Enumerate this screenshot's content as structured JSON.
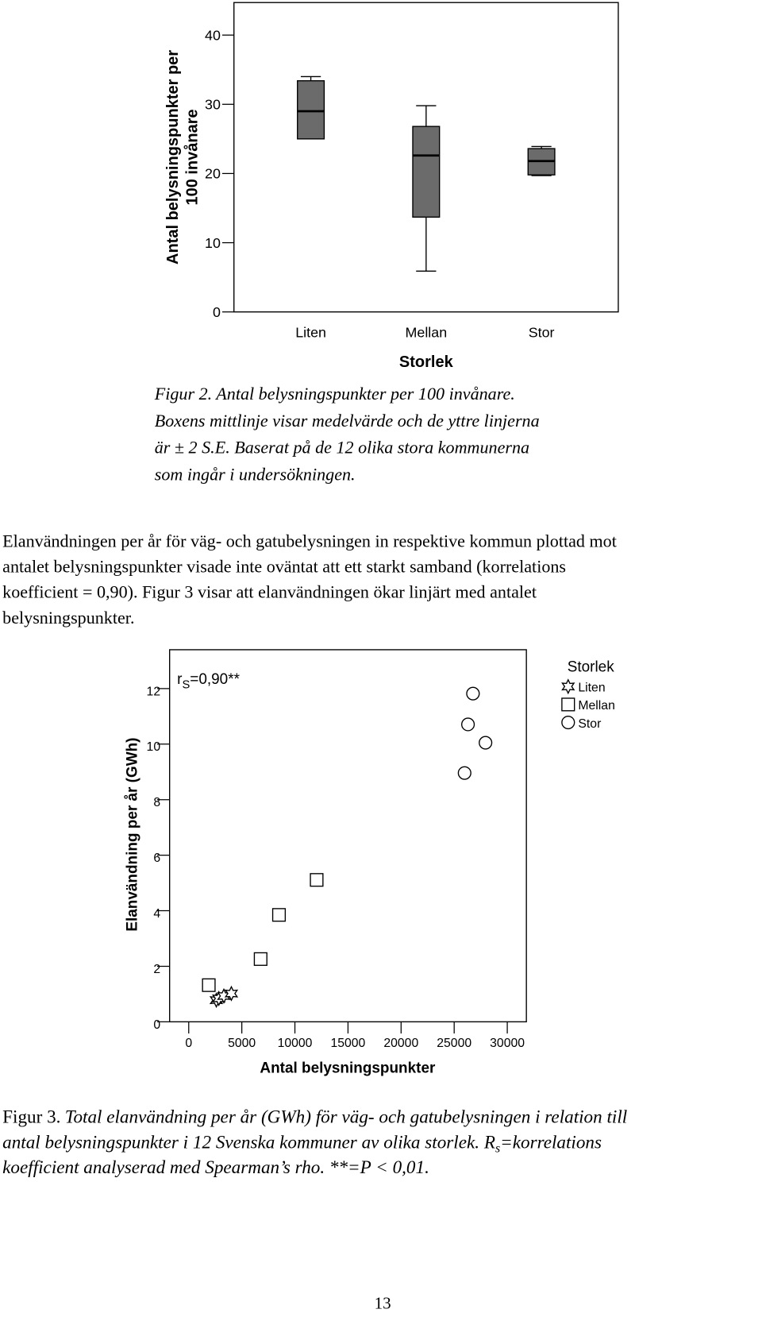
{
  "chart_data": [
    {
      "type": "box",
      "categories": [
        "Liten",
        "Mellan",
        "Stor"
      ],
      "whisker_low": [
        25,
        5.9,
        19.7
      ],
      "q1": [
        25,
        13.7,
        19.8
      ],
      "median": [
        29,
        22.6,
        21.8
      ],
      "q3": [
        33.4,
        26.8,
        23.6
      ],
      "whisker_high": [
        34,
        29.8,
        23.9
      ],
      "color": "#6b6b6b",
      "ylim": [
        0,
        44.7
      ],
      "yticks": [
        0,
        10,
        20,
        30,
        40
      ],
      "ylabel_lines": [
        "Antal belysningspunkter per",
        "100 invånare"
      ],
      "xlabel": "Storlek",
      "grid": false
    },
    {
      "type": "scatter",
      "series": [
        {
          "name": "Liten",
          "marker": "star",
          "x": [
            2600,
            2835,
            3307,
            4016
          ],
          "y": [
            0.78,
            0.84,
            0.93,
            1.02
          ]
        },
        {
          "name": "Mellan",
          "marker": "square",
          "x": [
            1890,
            6770,
            8500,
            12050
          ],
          "y": [
            1.32,
            2.26,
            3.85,
            5.11
          ]
        },
        {
          "name": "Stor",
          "marker": "circle",
          "x": [
            26770,
            26300,
            27950,
            25980
          ],
          "y": [
            11.82,
            10.71,
            10.05,
            8.96
          ]
        }
      ],
      "xlim": [
        -1800,
        31800
      ],
      "ylim": [
        0,
        13.4
      ],
      "xticks": [
        0,
        5000,
        10000,
        15000,
        20000,
        25000,
        30000
      ],
      "yticks": [
        0,
        2,
        4,
        6,
        8,
        10,
        12
      ],
      "xlabel": "Antal belysningspunkter",
      "ylabel": "Elanvändning per år (GWh)",
      "legend_title": "Storlek",
      "legend": "outside-right",
      "annotation": {
        "text": "r",
        "sub": "S",
        "after": "=0,90**"
      },
      "grid": false
    }
  ],
  "caption_1": {
    "lines": [
      "Figur 2. Antal belysningspunkter per 100 invånare.",
      "Boxens mittlinje visar medelvärde och de yttre linjerna",
      "är ± 2 S.E. Baserat på de 12 olika stora kommunerna",
      "som ingår i undersökningen."
    ]
  },
  "paragraph": {
    "lines": [
      "Elanvändningen per år för väg- och gatubelysningen in respektive kommun plottad mot",
      "antalet belysningspunkter visade inte oväntat att ett starkt samband (korrelations",
      "koefficient = 0,90). Figur 3 visar att elanvändningen ökar linjärt med antalet",
      "belysningspunkter."
    ]
  },
  "caption_2": {
    "label": "Figur 3.",
    "line_1": "Total elanvändning per år (GWh) för väg- och gatubelysningen i relation till",
    "line_2": "antal belysningspunkter i 12 Svenska kommuner av olika storlek. R",
    "line_2_sub": "s",
    "line_2_after": "=korrelations",
    "line_3": "koefficient analyserad med Spearman’s rho. **=P < 0,01."
  },
  "page_number": "13"
}
